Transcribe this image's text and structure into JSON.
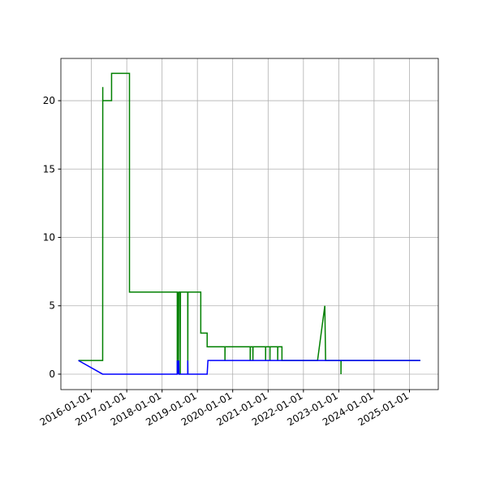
{
  "chart_data": {
    "type": "line",
    "series": [
      {
        "name": "green",
        "color": "#008000",
        "x": [
          "2015-08-20",
          "2016-04-27",
          "2016-04-28",
          "2016-04-28",
          "2016-07-28",
          "2016-07-28",
          "2017-01-29",
          "2017-01-29",
          "2018-06-07",
          "2018-06-07",
          "2018-06-10",
          "2018-06-13",
          "2018-06-16",
          "2018-06-19",
          "2018-06-22",
          "2018-07-06",
          "2018-07-08",
          "2018-07-10",
          "2018-09-23",
          "2018-09-24",
          "2018-09-25",
          "2019-02-05",
          "2019-02-05",
          "2019-04-12",
          "2019-04-12",
          "2019-10-13",
          "2019-10-13",
          "2019-10-14",
          "2020-06-30",
          "2020-06-30",
          "2020-07-02",
          "2020-07-27",
          "2020-07-28",
          "2020-07-29",
          "2020-12-06",
          "2020-12-06",
          "2020-12-07",
          "2021-01-20",
          "2021-01-20",
          "2021-01-21",
          "2021-04-10",
          "2021-04-10",
          "2021-04-11",
          "2021-05-24",
          "2021-05-24",
          "2022-05-27",
          "2022-08-10",
          "2022-08-18",
          "2023-01-24",
          "2023-01-24",
          "2023-01-25",
          "2025-04-23"
        ],
        "values": [
          1,
          1,
          21,
          20,
          20,
          22,
          22,
          6,
          6,
          0,
          6,
          0,
          6,
          0,
          6,
          6,
          0,
          6,
          6,
          0,
          6,
          6,
          3,
          3,
          2,
          2,
          1,
          2,
          2,
          1,
          2,
          2,
          1,
          2,
          2,
          1,
          2,
          2,
          1,
          2,
          2,
          1,
          2,
          2,
          1,
          1,
          5,
          1,
          1,
          0,
          1,
          1
        ]
      },
      {
        "name": "blue",
        "color": "#0000ff",
        "x": [
          "2015-08-20",
          "2016-04-27",
          "2018-06-07",
          "2018-06-07",
          "2018-06-10",
          "2018-06-13",
          "2018-06-16",
          "2018-06-22",
          "2018-06-25",
          "2018-09-23",
          "2018-09-23",
          "2018-09-25",
          "2019-04-12",
          "2019-04-20",
          "2025-04-23"
        ],
        "values": [
          1,
          0,
          0,
          1,
          0,
          1,
          0,
          1,
          0,
          0,
          1,
          0,
          0,
          1,
          1
        ]
      }
    ],
    "xlim": [
      "2015-02-20",
      "2025-10-26"
    ],
    "xticks": [
      "2016-01-01",
      "2017-01-01",
      "2018-01-01",
      "2019-01-01",
      "2020-01-01",
      "2021-01-01",
      "2022-01-01",
      "2023-01-01",
      "2024-01-01",
      "2025-01-01"
    ],
    "ylim": [
      -1.13,
      23.09
    ],
    "yticks": [
      0,
      5,
      10,
      15,
      20
    ],
    "grid": true
  }
}
